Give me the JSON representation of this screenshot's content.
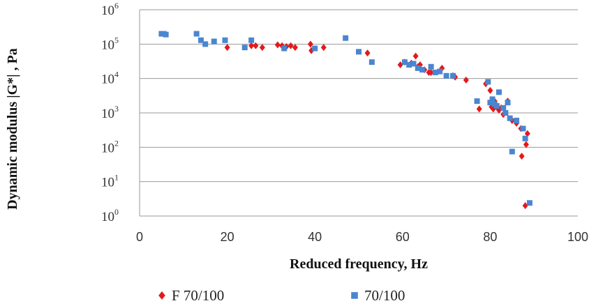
{
  "chart_data": {
    "type": "scatter",
    "title": "",
    "xlabel": "Reduced frequency, Hz",
    "ylabel": "Dynamic modulus |G*| , Pa",
    "xlim": [
      0,
      100
    ],
    "ylim_log10": [
      0,
      6
    ],
    "y_scale": "log",
    "x_ticks": [
      0,
      20,
      40,
      60,
      80,
      100
    ],
    "y_tick_base": "10",
    "y_tick_exponents": [
      "0",
      "1",
      "2",
      "3",
      "4",
      "5",
      "6"
    ],
    "grid": "horizontal",
    "legend_position": "bottom",
    "series": [
      {
        "name": "F 70/100",
        "color": "#e31a1c",
        "marker": "diamond",
        "x": [
          20,
          25.5,
          26.5,
          28,
          31.5,
          32.5,
          33.5,
          34.5,
          35.5,
          39,
          39.2,
          42,
          52,
          59.5,
          60.5,
          62,
          63,
          63.5,
          64,
          65,
          66,
          66.5,
          69,
          71.5,
          72,
          74.5,
          77.5,
          79,
          80,
          80.3,
          80.7,
          81,
          81.5,
          82,
          82.5,
          83,
          84,
          85,
          86,
          87,
          87.2,
          88,
          88.2,
          88.5
        ],
        "y": [
          80000,
          90000,
          90000,
          80000,
          95000,
          90000,
          85000,
          90000,
          80000,
          100000,
          65000,
          80000,
          55000,
          25000,
          30000,
          28000,
          45000,
          22000,
          25000,
          18000,
          15000,
          15000,
          20000,
          12000,
          11000,
          9000,
          1300,
          7000,
          4500,
          1500,
          1300,
          2200,
          1500,
          1200,
          1400,
          900,
          2200,
          600,
          500,
          350,
          55,
          2,
          120,
          250
        ]
      },
      {
        "name": "70/100",
        "color": "#4a86d0",
        "marker": "square",
        "x": [
          5,
          5.5,
          6,
          13,
          14,
          15,
          17,
          19.5,
          24,
          25.5,
          33,
          40,
          47,
          50,
          53,
          60.5,
          61.5,
          62.5,
          63.5,
          64.5,
          66.5,
          67.5,
          68.5,
          70,
          71.5,
          77,
          79.5,
          80,
          80.5,
          81,
          81.5,
          82,
          83,
          83.5,
          84,
          84.5,
          85,
          86,
          87.5,
          88,
          89
        ],
        "y": [
          200000,
          200000,
          190000,
          200000,
          130000,
          100000,
          120000,
          130000,
          80000,
          130000,
          75000,
          75000,
          150000,
          60000,
          30000,
          30000,
          25000,
          27000,
          20000,
          18000,
          22000,
          15000,
          16000,
          12000,
          12000,
          2200,
          8000,
          2000,
          2500,
          1800,
          1600,
          4000,
          1400,
          1000,
          2000,
          700,
          75,
          600,
          350,
          180,
          2.4
        ]
      }
    ]
  }
}
